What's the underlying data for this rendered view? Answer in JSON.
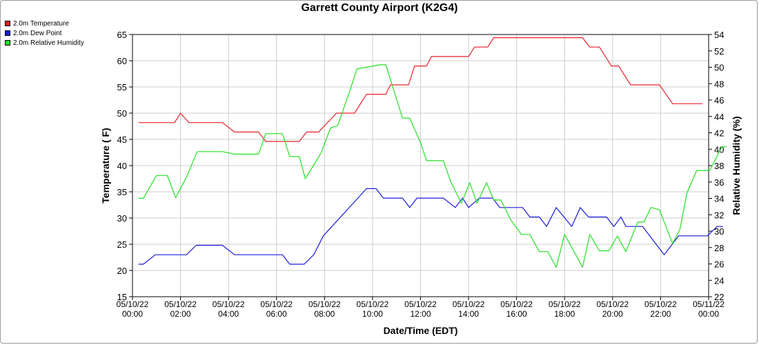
{
  "chart_data": {
    "type": "line",
    "title": "Garrett County Airport (K2G4)",
    "xlabel": "Date/Time (EDT)",
    "ylabel": "Temperature ( F)",
    "y2label": "Relative Humidity (%)",
    "ylim": [
      15,
      65
    ],
    "y2lim": [
      22,
      54
    ],
    "grid": true,
    "legend_position": "top-left",
    "x_ticks": [
      {
        "hour": 0,
        "date": "05/10/22",
        "time": "00:00"
      },
      {
        "hour": 2,
        "date": "05/10/22",
        "time": "02:00"
      },
      {
        "hour": 4,
        "date": "05/10/22",
        "time": "04:00"
      },
      {
        "hour": 6,
        "date": "05/10/22",
        "time": "06:00"
      },
      {
        "hour": 8,
        "date": "05/10/22",
        "time": "08:00"
      },
      {
        "hour": 10,
        "date": "05/10/22",
        "time": "10:00"
      },
      {
        "hour": 12,
        "date": "05/10/22",
        "time": "12:00"
      },
      {
        "hour": 14,
        "date": "05/10/22",
        "time": "14:00"
      },
      {
        "hour": 16,
        "date": "05/10/22",
        "time": "16:00"
      },
      {
        "hour": 18,
        "date": "05/10/22",
        "time": "18:00"
      },
      {
        "hour": 20,
        "date": "05/10/22",
        "time": "20:00"
      },
      {
        "hour": 22,
        "date": "05/10/22",
        "time": "22:00"
      },
      {
        "hour": 24,
        "date": "05/11/22",
        "time": "00:00"
      }
    ],
    "y_ticks": [
      "15",
      "20",
      "25",
      "30",
      "35",
      "40",
      "45",
      "50",
      "55",
      "60",
      "65"
    ],
    "y2_ticks": [
      "22",
      "24",
      "26",
      "28",
      "30",
      "32",
      "34",
      "36",
      "38",
      "40",
      "42",
      "44",
      "46",
      "48",
      "50",
      "52",
      "54"
    ],
    "series": [
      {
        "name": "2.0m Temperature",
        "color": "#e8202a",
        "axis": "left",
        "points": [
          [
            0.25,
            48.2
          ],
          [
            1.25,
            48.2
          ],
          [
            1.75,
            48.2
          ],
          [
            2.0,
            50.0
          ],
          [
            2.35,
            48.2
          ],
          [
            3.75,
            48.2
          ],
          [
            4.25,
            46.4
          ],
          [
            5.25,
            46.4
          ],
          [
            5.55,
            44.6
          ],
          [
            6.95,
            44.6
          ],
          [
            7.25,
            46.4
          ],
          [
            7.75,
            46.4
          ],
          [
            8.5,
            50.0
          ],
          [
            9.25,
            50.0
          ],
          [
            9.75,
            53.6
          ],
          [
            10.55,
            53.6
          ],
          [
            10.75,
            55.4
          ],
          [
            11.5,
            55.4
          ],
          [
            11.75,
            59.0
          ],
          [
            12.25,
            59.0
          ],
          [
            12.45,
            60.8
          ],
          [
            14.0,
            60.8
          ],
          [
            14.25,
            62.6
          ],
          [
            14.8,
            62.6
          ],
          [
            15.05,
            64.4
          ],
          [
            18.75,
            64.4
          ],
          [
            19.05,
            62.6
          ],
          [
            19.45,
            62.6
          ],
          [
            19.95,
            59.0
          ],
          [
            20.25,
            59.0
          ],
          [
            20.75,
            55.4
          ],
          [
            21.95,
            55.4
          ],
          [
            22.5,
            51.8
          ],
          [
            23.75,
            51.8
          ]
        ]
      },
      {
        "name": "2.0m Dew Point",
        "color": "#1a1adc",
        "axis": "left",
        "points": [
          [
            0.25,
            21.2
          ],
          [
            0.45,
            21.2
          ],
          [
            0.95,
            23.0
          ],
          [
            2.25,
            23.0
          ],
          [
            2.65,
            24.8
          ],
          [
            3.75,
            24.8
          ],
          [
            4.25,
            23.0
          ],
          [
            6.25,
            23.0
          ],
          [
            6.55,
            21.2
          ],
          [
            7.15,
            21.2
          ],
          [
            7.55,
            23.0
          ],
          [
            7.95,
            26.6
          ],
          [
            9.75,
            35.6
          ],
          [
            10.15,
            35.6
          ],
          [
            10.45,
            33.8
          ],
          [
            11.25,
            33.8
          ],
          [
            11.55,
            32.0
          ],
          [
            11.85,
            33.8
          ],
          [
            12.95,
            33.8
          ],
          [
            13.45,
            32.0
          ],
          [
            13.75,
            33.8
          ],
          [
            14.0,
            32.0
          ],
          [
            14.45,
            33.8
          ],
          [
            15.0,
            33.8
          ],
          [
            15.3,
            32.0
          ],
          [
            16.25,
            32.0
          ],
          [
            16.55,
            30.2
          ],
          [
            16.95,
            30.2
          ],
          [
            17.25,
            28.4
          ],
          [
            17.65,
            32.0
          ],
          [
            18.3,
            28.4
          ],
          [
            18.65,
            32.0
          ],
          [
            19.0,
            30.2
          ],
          [
            19.75,
            30.2
          ],
          [
            20.05,
            28.4
          ],
          [
            20.35,
            30.2
          ],
          [
            20.55,
            28.4
          ],
          [
            21.25,
            28.4
          ],
          [
            22.15,
            23.0
          ],
          [
            22.75,
            26.6
          ],
          [
            23.95,
            26.6
          ],
          [
            24.35,
            28.4
          ],
          [
            24.6,
            28.4
          ]
        ]
      },
      {
        "name": "2.0m Relative Humidity",
        "color": "#22e022",
        "axis": "right",
        "points": [
          [
            0.25,
            34.0
          ],
          [
            0.45,
            34.0
          ],
          [
            1.0,
            36.8
          ],
          [
            1.45,
            36.8
          ],
          [
            1.8,
            34.1
          ],
          [
            2.25,
            36.6
          ],
          [
            2.7,
            39.7
          ],
          [
            3.75,
            39.7
          ],
          [
            4.25,
            39.4
          ],
          [
            5.25,
            39.4
          ],
          [
            5.55,
            41.9
          ],
          [
            6.25,
            41.9
          ],
          [
            6.55,
            39.1
          ],
          [
            6.95,
            39.1
          ],
          [
            7.2,
            36.4
          ],
          [
            7.85,
            39.5
          ],
          [
            8.25,
            42.6
          ],
          [
            8.55,
            42.9
          ],
          [
            9.05,
            47.1
          ],
          [
            9.35,
            49.8
          ],
          [
            10.3,
            50.3
          ],
          [
            10.55,
            50.3
          ],
          [
            11.25,
            43.8
          ],
          [
            11.55,
            43.8
          ],
          [
            12.0,
            40.8
          ],
          [
            12.25,
            38.6
          ],
          [
            12.95,
            38.6
          ],
          [
            13.25,
            36.1
          ],
          [
            13.7,
            33.4
          ],
          [
            14.05,
            35.9
          ],
          [
            14.35,
            33.4
          ],
          [
            14.75,
            35.9
          ],
          [
            15.05,
            33.8
          ],
          [
            15.35,
            33.8
          ],
          [
            15.75,
            31.4
          ],
          [
            16.2,
            29.6
          ],
          [
            16.55,
            29.6
          ],
          [
            16.95,
            27.5
          ],
          [
            17.3,
            27.5
          ],
          [
            17.65,
            25.6
          ],
          [
            18.0,
            29.6
          ],
          [
            18.75,
            25.6
          ],
          [
            19.05,
            29.6
          ],
          [
            19.45,
            27.6
          ],
          [
            19.85,
            27.6
          ],
          [
            20.2,
            29.4
          ],
          [
            20.55,
            27.5
          ],
          [
            21.05,
            31.1
          ],
          [
            21.3,
            31.1
          ],
          [
            21.6,
            32.9
          ],
          [
            21.95,
            32.6
          ],
          [
            22.5,
            28.5
          ],
          [
            22.8,
            30.2
          ],
          [
            23.1,
            34.7
          ],
          [
            23.5,
            37.4
          ],
          [
            24.05,
            37.4
          ],
          [
            24.55,
            40.3
          ],
          [
            24.75,
            40.3
          ]
        ]
      }
    ]
  }
}
